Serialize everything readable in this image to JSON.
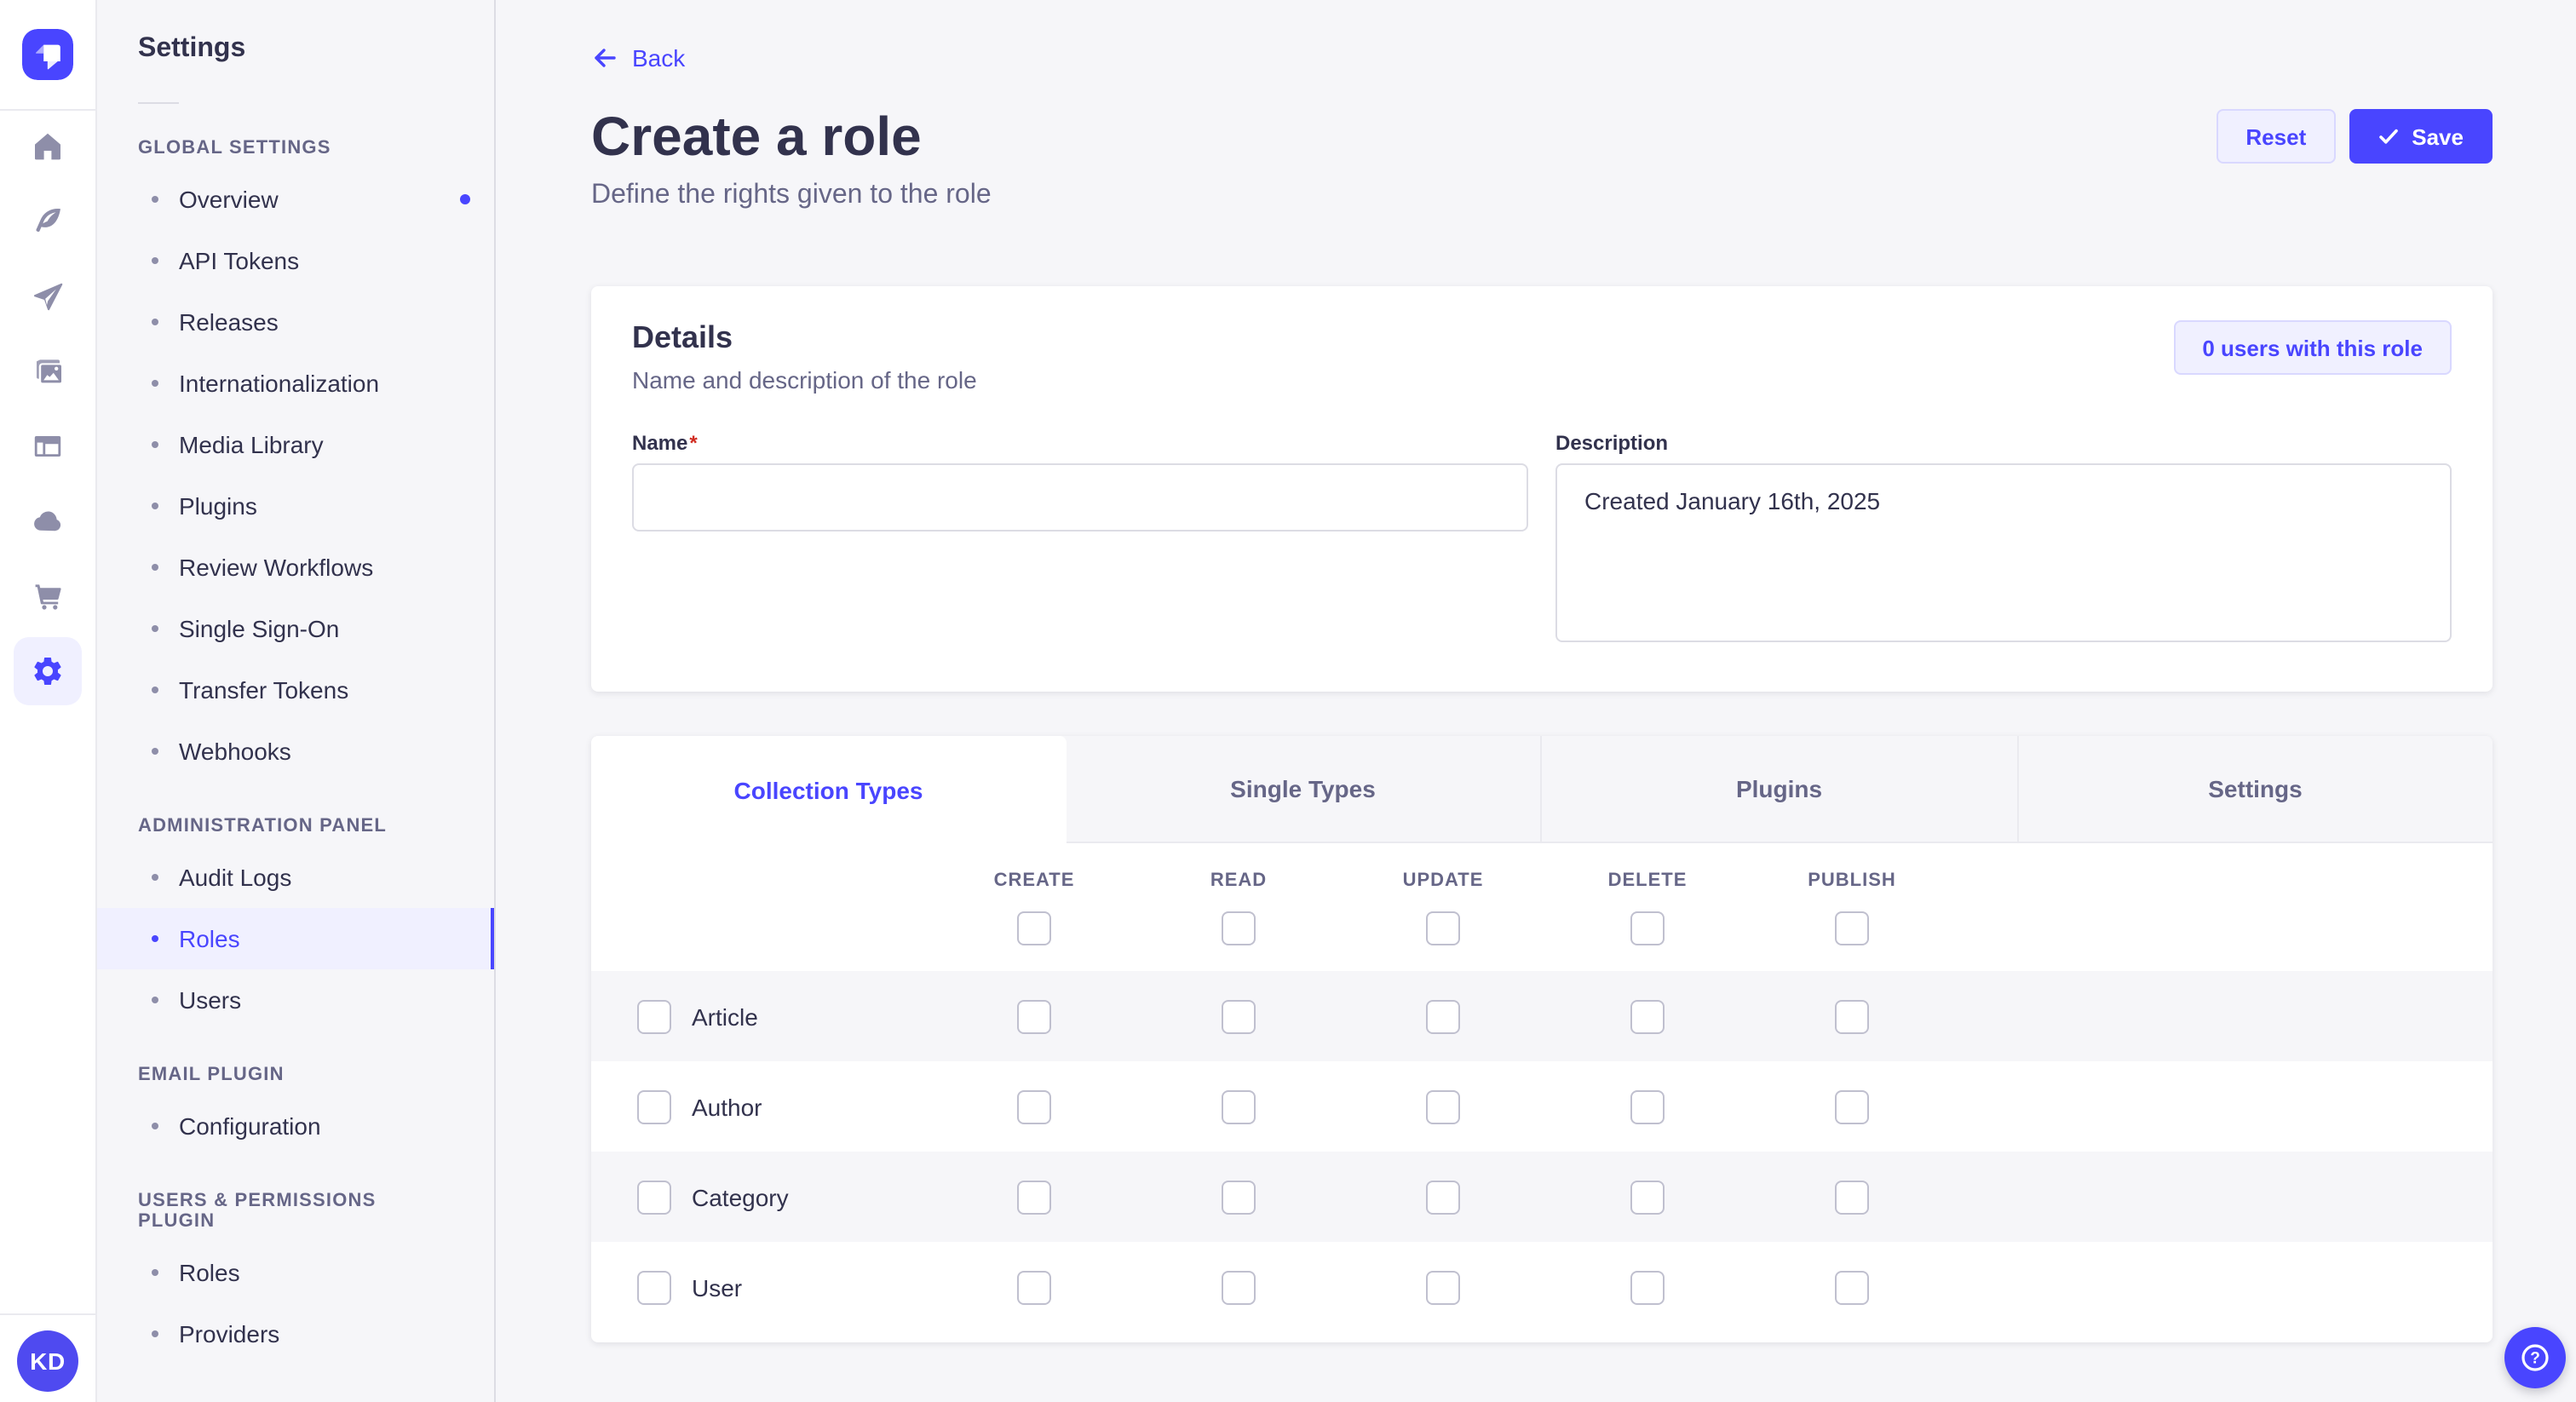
{
  "colors": {
    "primary": "#4945ff",
    "primary_bg": "#f0f0ff",
    "primary_border": "#d9d8ff",
    "text": "#32324d",
    "text_secondary": "#666687",
    "muted": "#8e8ea9",
    "border": "#eaeaef",
    "input_border": "#dcdce4",
    "page_bg": "#f6f6f9",
    "danger": "#d02b20"
  },
  "icon_rail": {
    "logo_icon": "strapi-logo",
    "items": [
      "home-icon",
      "content-manager-icon",
      "releases-icon",
      "media-library-icon",
      "content-type-builder-icon",
      "cloud-icon",
      "marketplace-icon",
      "settings-icon"
    ],
    "active_item": "settings-icon",
    "avatar_initials": "KD"
  },
  "sidebar": {
    "title": "Settings",
    "sections": [
      {
        "label": "GLOBAL SETTINGS",
        "items": [
          {
            "label": "Overview",
            "notification": true
          },
          {
            "label": "API Tokens"
          },
          {
            "label": "Releases"
          },
          {
            "label": "Internationalization"
          },
          {
            "label": "Media Library"
          },
          {
            "label": "Plugins"
          },
          {
            "label": "Review Workflows"
          },
          {
            "label": "Single Sign-On"
          },
          {
            "label": "Transfer Tokens"
          },
          {
            "label": "Webhooks"
          }
        ]
      },
      {
        "label": "ADMINISTRATION PANEL",
        "items": [
          {
            "label": "Audit Logs"
          },
          {
            "label": "Roles",
            "active": true
          },
          {
            "label": "Users"
          }
        ]
      },
      {
        "label": "EMAIL PLUGIN",
        "items": [
          {
            "label": "Configuration"
          }
        ]
      },
      {
        "label": "USERS & PERMISSIONS PLUGIN",
        "items": [
          {
            "label": "Roles"
          },
          {
            "label": "Providers"
          }
        ]
      }
    ]
  },
  "header": {
    "back_label": "Back",
    "title": "Create a role",
    "subtitle": "Define the rights given to the role",
    "reset_label": "Reset",
    "save_label": "Save"
  },
  "details": {
    "title": "Details",
    "subtitle": "Name and description of the role",
    "users_button_label": "0 users with this role",
    "name_label": "Name",
    "required_marker": "*",
    "name_value": "",
    "description_label": "Description",
    "description_value": "Created January 16th, 2025"
  },
  "permissions": {
    "tabs": [
      {
        "label": "Collection Types",
        "active": true
      },
      {
        "label": "Single Types"
      },
      {
        "label": "Plugins"
      },
      {
        "label": "Settings"
      }
    ],
    "columns": [
      "CREATE",
      "READ",
      "UPDATE",
      "DELETE",
      "PUBLISH"
    ],
    "rows": [
      "Article",
      "Author",
      "Category",
      "User"
    ],
    "checkbox_state": "unchecked"
  },
  "help": {
    "icon_glyph": "?"
  }
}
